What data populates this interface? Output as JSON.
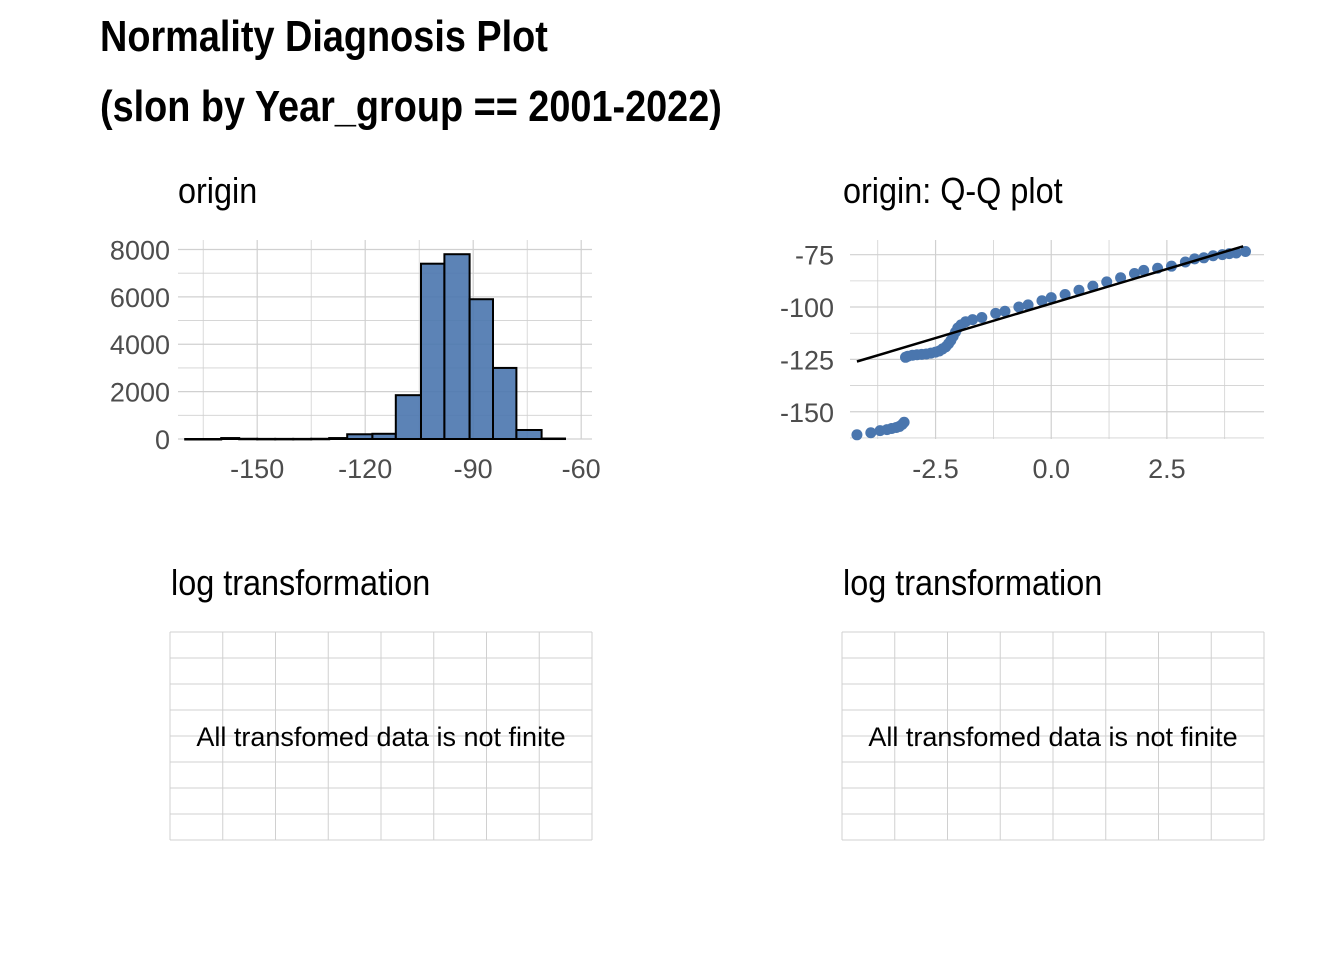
{
  "title": {
    "line1": "Normality Diagnosis Plot",
    "line2": "(slon by Year_group == 2001-2022)"
  },
  "colors": {
    "fill": "#4A76AE",
    "grid": "#D0D0D0",
    "line": "#000000"
  },
  "panels": {
    "origin_hist": {
      "title": "origin"
    },
    "origin_qq": {
      "title": "origin: Q-Q plot"
    },
    "log_left": {
      "title": "log transformation",
      "message": "All transfomed data is not finite"
    },
    "log_right": {
      "title": "log transformation",
      "message": "All transfomed data is not finite"
    }
  },
  "chart_data": [
    {
      "type": "bar",
      "name": "origin histogram",
      "title": "origin",
      "bins": [
        {
          "x0": -170,
          "x1": -160,
          "count": 0
        },
        {
          "x0": -160,
          "x1": -155,
          "count": 40
        },
        {
          "x0": -155,
          "x1": -150,
          "count": 10
        },
        {
          "x0": -150,
          "x1": -145,
          "count": 5
        },
        {
          "x0": -145,
          "x1": -140,
          "count": 5
        },
        {
          "x0": -140,
          "x1": -135,
          "count": 5
        },
        {
          "x0": -135,
          "x1": -130,
          "count": 10
        },
        {
          "x0": -130,
          "x1": -125,
          "count": 40
        },
        {
          "x0": -125,
          "x1": -118,
          "count": 200
        },
        {
          "x0": -118,
          "x1": -111.5,
          "count": 220
        },
        {
          "x0": -111.5,
          "x1": -104.5,
          "count": 1850
        },
        {
          "x0": -104.5,
          "x1": -98,
          "count": 7400
        },
        {
          "x0": -98,
          "x1": -91,
          "count": 7800
        },
        {
          "x0": -91,
          "x1": -84.5,
          "count": 5900
        },
        {
          "x0": -84.5,
          "x1": -78,
          "count": 3000
        },
        {
          "x0": -78,
          "x1": -71,
          "count": 380
        },
        {
          "x0": -71,
          "x1": -64.5,
          "count": 20
        }
      ],
      "xlim": [
        -172,
        -57
      ],
      "ylim": [
        0,
        8400
      ],
      "xticks": [
        -150,
        -120,
        -90,
        -60
      ],
      "yticks": [
        0,
        2000,
        4000,
        6000,
        8000
      ],
      "xtick_labels": [
        "-150",
        "-120",
        "-90",
        "-60"
      ],
      "ytick_labels": [
        "0",
        "2000",
        "4000",
        "6000",
        "8000"
      ],
      "grid": true
    },
    {
      "type": "scatter",
      "name": "origin Q-Q plot",
      "title": "origin: Q-Q plot",
      "points": [
        [
          -4.2,
          -161
        ],
        [
          -3.9,
          -160
        ],
        [
          -3.7,
          -159
        ],
        [
          -3.55,
          -158.5
        ],
        [
          -3.45,
          -158
        ],
        [
          -3.35,
          -157.5
        ],
        [
          -3.28,
          -157
        ],
        [
          -3.22,
          -156
        ],
        [
          -3.18,
          -155
        ],
        [
          -3.15,
          -124
        ],
        [
          -3.1,
          -123.5
        ],
        [
          -3.0,
          -123
        ],
        [
          -2.9,
          -122.8
        ],
        [
          -2.8,
          -122.6
        ],
        [
          -2.7,
          -122.4
        ],
        [
          -2.6,
          -122
        ],
        [
          -2.5,
          -121.5
        ],
        [
          -2.42,
          -121
        ],
        [
          -2.35,
          -120
        ],
        [
          -2.28,
          -119
        ],
        [
          -2.22,
          -117.5
        ],
        [
          -2.17,
          -116
        ],
        [
          -2.12,
          -114
        ],
        [
          -2.07,
          -112
        ],
        [
          -2.02,
          -110
        ],
        [
          -1.95,
          -108.5
        ],
        [
          -1.85,
          -107
        ],
        [
          -1.7,
          -106
        ],
        [
          -1.5,
          -105
        ],
        [
          -1.2,
          -103
        ],
        [
          -1.0,
          -102
        ],
        [
          -0.7,
          -100
        ],
        [
          -0.5,
          -99
        ],
        [
          -0.2,
          -97
        ],
        [
          0.0,
          -95.5
        ],
        [
          0.3,
          -94
        ],
        [
          0.6,
          -92
        ],
        [
          0.9,
          -90
        ],
        [
          1.2,
          -88
        ],
        [
          1.5,
          -86
        ],
        [
          1.8,
          -84
        ],
        [
          2.0,
          -82.5
        ],
        [
          2.3,
          -81.5
        ],
        [
          2.6,
          -80.5
        ],
        [
          2.9,
          -78.5
        ],
        [
          3.1,
          -77
        ],
        [
          3.3,
          -76.5
        ],
        [
          3.5,
          -75.5
        ],
        [
          3.7,
          -75
        ],
        [
          3.85,
          -74.5
        ],
        [
          4.0,
          -74.2
        ],
        [
          4.2,
          -73.5
        ]
      ],
      "reference_line": {
        "x": [
          -4.2,
          4.15
        ],
        "y": [
          -126,
          -71
        ]
      },
      "xlim": [
        -4.35,
        4.6
      ],
      "ylim": [
        -163,
        -68
      ],
      "xticks": [
        -2.5,
        0.0,
        2.5
      ],
      "yticks": [
        -150,
        -125,
        -100,
        -75
      ],
      "xtick_labels": [
        "-2.5",
        "0.0",
        "2.5"
      ],
      "ytick_labels": [
        "-150",
        "-125",
        "-100",
        "-75"
      ],
      "grid": true
    }
  ]
}
